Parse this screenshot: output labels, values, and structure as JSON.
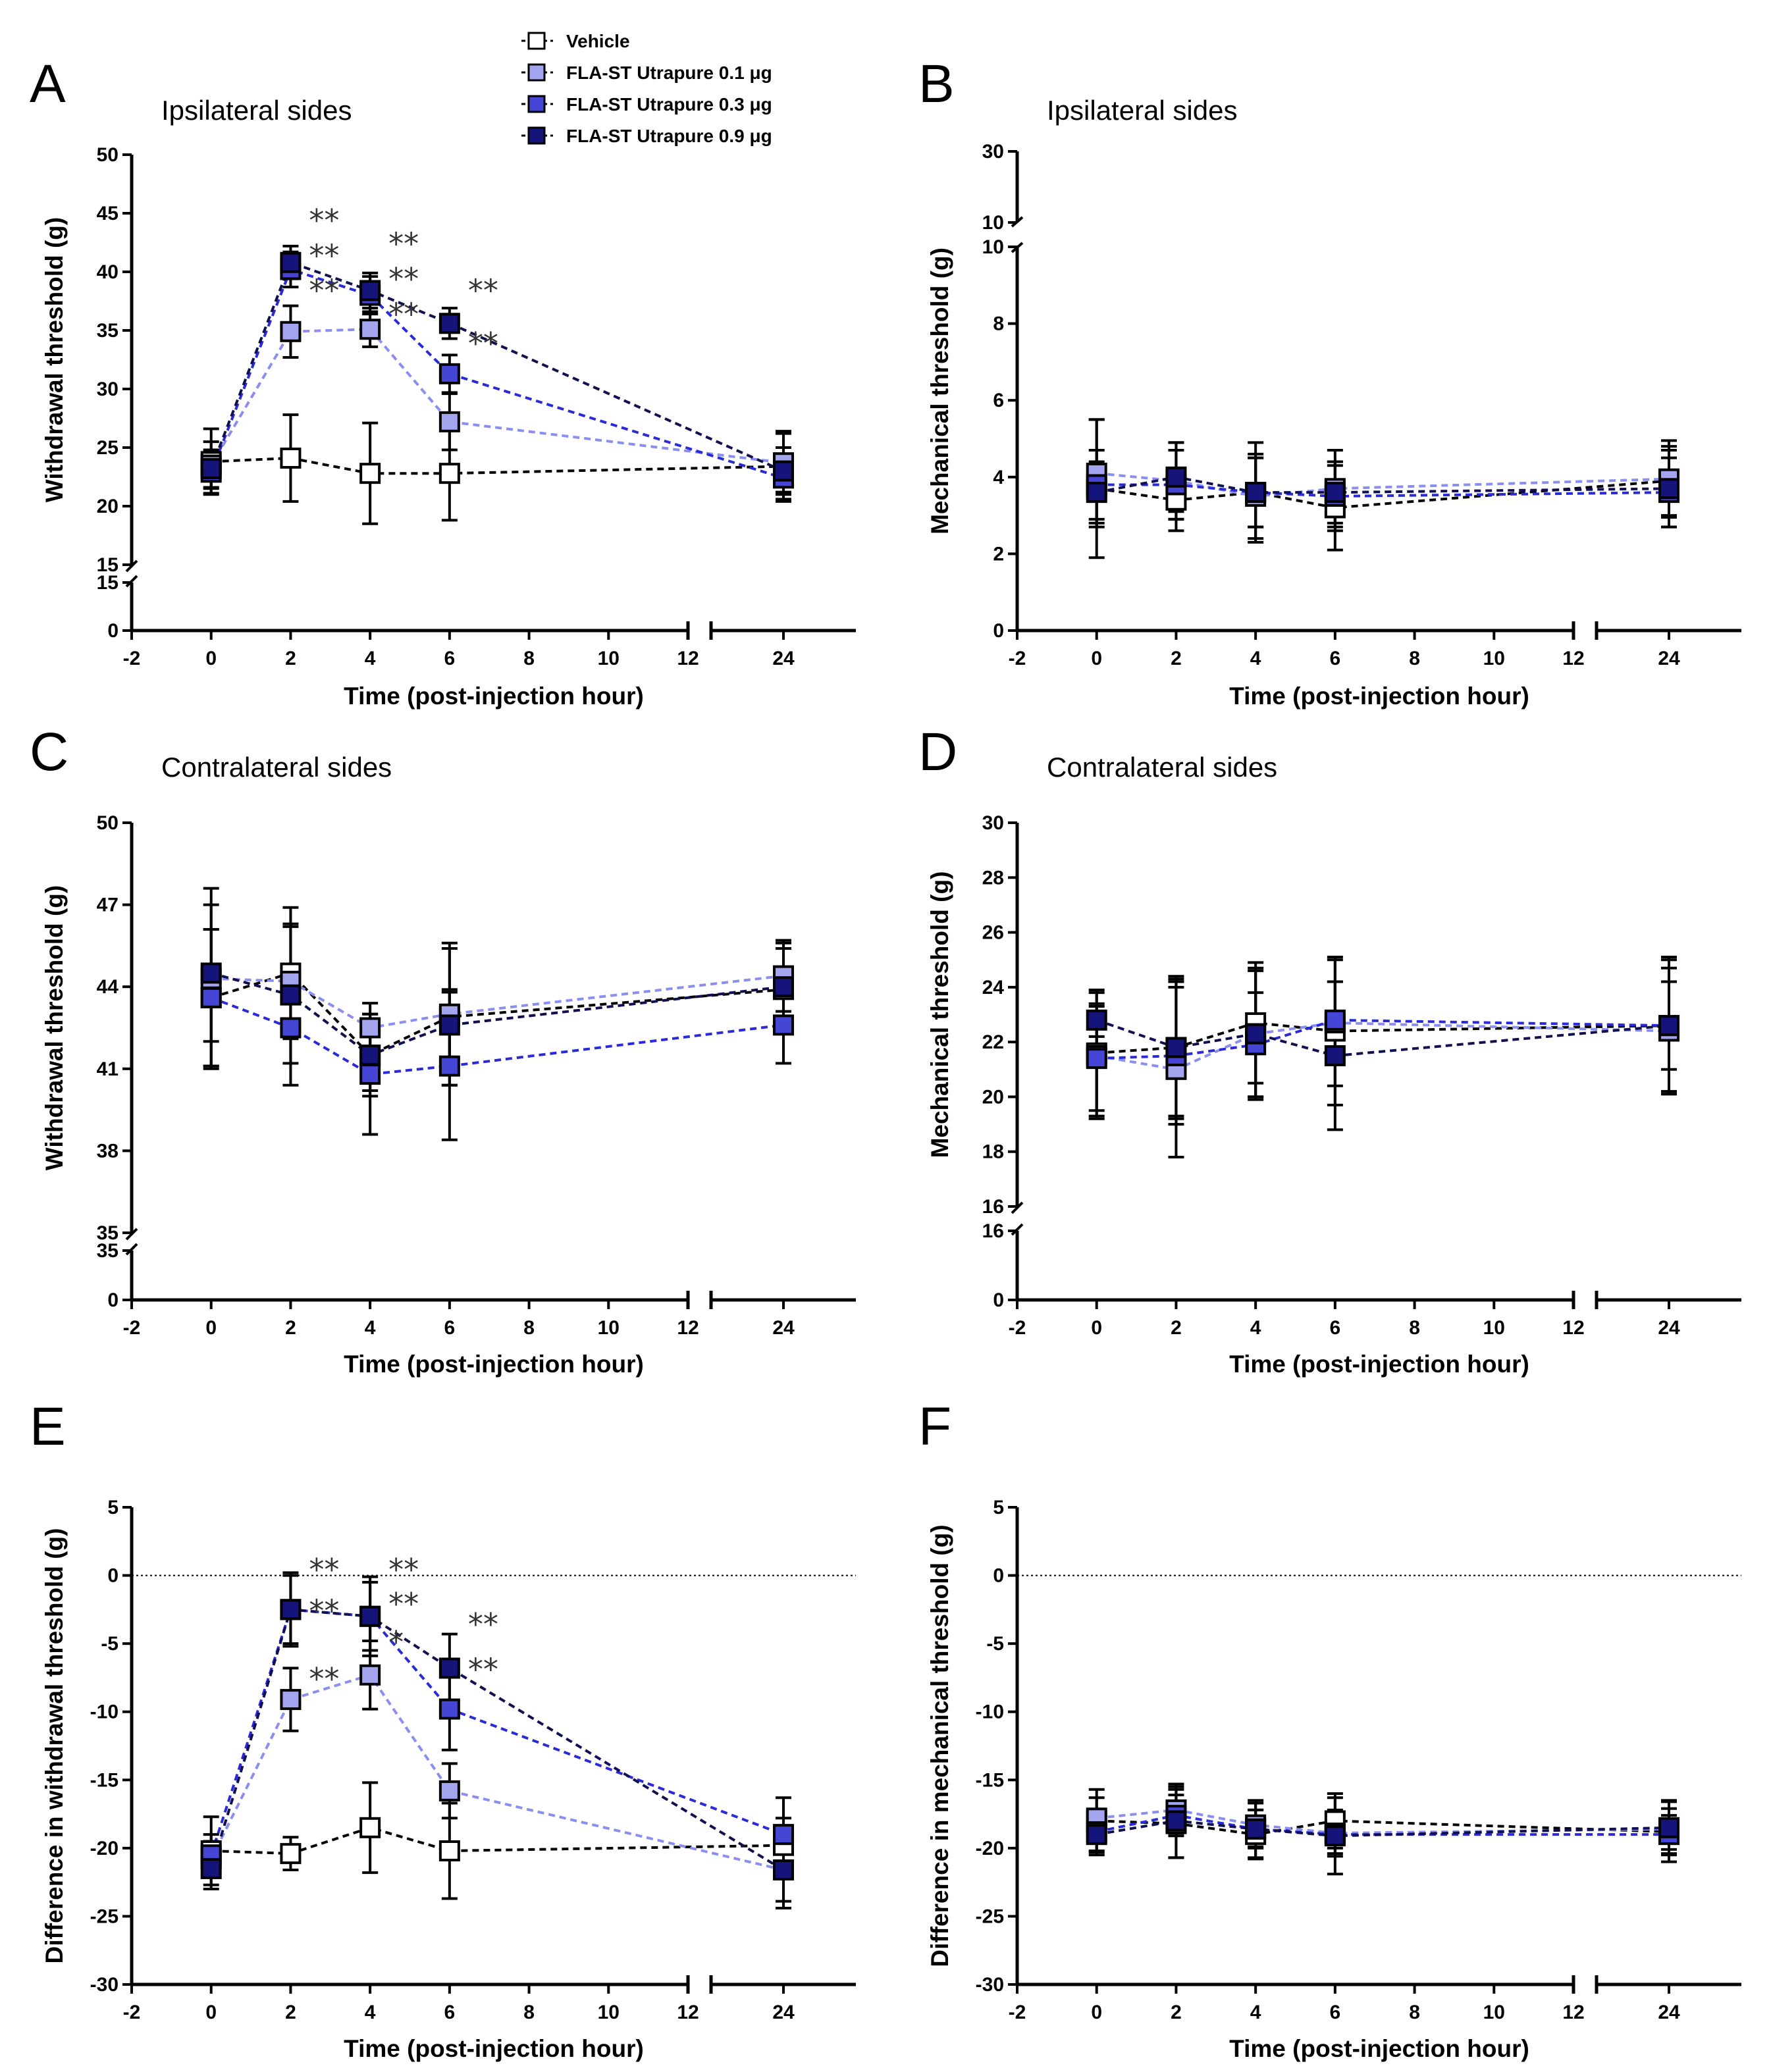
{
  "legend": {
    "items": [
      {
        "label": "Vehicle",
        "color": "#ffffff"
      },
      {
        "label": "FLA-ST Utrapure 0.1 μg",
        "color": "#a3a5ee"
      },
      {
        "label": "FLA-ST Utrapure 0.3 μg",
        "color": "#4646d6"
      },
      {
        "label": "FLA-ST Utrapure 0.9 μg",
        "color": "#14147a"
      }
    ]
  },
  "colors": {
    "vehicle": "#ffffff",
    "low": "#a3a5ee",
    "mid": "#4646d6",
    "high": "#14147a",
    "line_low": "#8a8ef0",
    "line_mid": "#2a2ad8",
    "line_high": "#101050"
  },
  "chart_data": [
    {
      "panel": "A",
      "type": "line",
      "title": "Ipsilateral sides",
      "xlabel": "Time (post-injection hour)",
      "ylabel": "Withdrawal threshold (g)",
      "x": [
        0,
        2,
        4,
        6,
        24
      ],
      "xticks": [
        "-2",
        "0",
        "2",
        "4",
        "6",
        "8",
        "10",
        "12",
        "24"
      ],
      "upper_yticks": [
        "15",
        "20",
        "25",
        "30",
        "35",
        "40",
        "45",
        "50"
      ],
      "lower_yticks": [
        "0",
        "15"
      ],
      "ylim_upper": [
        15,
        50
      ],
      "reference_zero_line": false,
      "series": [
        {
          "name": "Vehicle",
          "values": [
            23.8,
            24.1,
            22.8,
            22.8,
            23.4
          ],
          "errors": [
            2.8,
            3.7,
            4.3,
            4.0,
            3.0
          ]
        },
        {
          "name": "FLA-ST Utrapure 0.1 μg",
          "values": [
            23.5,
            34.9,
            35.1,
            27.2,
            23.7
          ],
          "errors": [
            2.0,
            2.2,
            1.5,
            2.4,
            2.5
          ]
        },
        {
          "name": "FLA-ST Utrapure 0.3 μg",
          "values": [
            22.9,
            40.2,
            38.0,
            31.3,
            22.4
          ],
          "errors": [
            1.8,
            1.5,
            1.6,
            1.6,
            1.8
          ]
        },
        {
          "name": "FLA-ST Utrapure 0.9 μg",
          "values": [
            23.2,
            40.8,
            38.4,
            35.6,
            23.0
          ],
          "errors": [
            1.6,
            1.4,
            1.5,
            1.3,
            2.0
          ]
        }
      ],
      "annotations": [
        {
          "x": 2,
          "y": 44.5,
          "text": "**"
        },
        {
          "x": 2,
          "y": 41.5,
          "text": "**"
        },
        {
          "x": 2,
          "y": 38.5,
          "text": "**"
        },
        {
          "x": 4,
          "y": 42.5,
          "text": "**"
        },
        {
          "x": 4,
          "y": 39.5,
          "text": "**"
        },
        {
          "x": 4,
          "y": 36.5,
          "text": "**"
        },
        {
          "x": 6,
          "y": 38.5,
          "text": "**"
        },
        {
          "x": 6,
          "y": 34.0,
          "text": "**"
        }
      ]
    },
    {
      "panel": "B",
      "type": "line",
      "title": "Ipsilateral sides",
      "xlabel": "Time (post-injection hour)",
      "ylabel": "Mechanical threshold (g)",
      "x": [
        0,
        2,
        4,
        6,
        24
      ],
      "xticks": [
        "-2",
        "0",
        "2",
        "4",
        "6",
        "8",
        "10",
        "12",
        "24"
      ],
      "upper_yticks": [
        "0",
        "2",
        "4",
        "6",
        "8",
        "10"
      ],
      "lower_yticks": [],
      "top_yticks": [
        "10",
        "30"
      ],
      "ylim_upper": [
        0,
        10
      ],
      "reference_zero_line": false,
      "series": [
        {
          "name": "Vehicle",
          "values": [
            3.7,
            3.4,
            3.6,
            3.2,
            3.9
          ],
          "errors": [
            1.8,
            0.8,
            1.3,
            1.1,
            0.9
          ]
        },
        {
          "name": "FLA-ST Utrapure 0.1 μg",
          "values": [
            4.1,
            3.9,
            3.5,
            3.7,
            3.95
          ],
          "errors": [
            1.4,
            1.0,
            1.1,
            1.0,
            1.0
          ]
        },
        {
          "name": "FLA-ST Utrapure 0.3 μg",
          "values": [
            3.8,
            3.8,
            3.6,
            3.5,
            3.6
          ],
          "errors": [
            0.9,
            0.9,
            0.9,
            0.9,
            0.9
          ]
        },
        {
          "name": "FLA-ST Utrapure 0.9 μg",
          "values": [
            3.6,
            4.0,
            3.6,
            3.6,
            3.7
          ],
          "errors": [
            0.8,
            0.9,
            0.9,
            0.8,
            1.0
          ]
        }
      ],
      "annotations": []
    },
    {
      "panel": "C",
      "type": "line",
      "title": "Contralateral sides",
      "xlabel": "Time (post-injection hour)",
      "ylabel": "Withdrawal threshold (g)",
      "x": [
        0,
        2,
        4,
        6,
        24
      ],
      "xticks": [
        "-2",
        "0",
        "2",
        "4",
        "6",
        "8",
        "10",
        "12",
        "24"
      ],
      "upper_yticks": [
        "35",
        "38",
        "41",
        "44",
        "47",
        "50"
      ],
      "lower_yticks": [
        "0",
        "35"
      ],
      "ylim_upper": [
        35,
        50
      ],
      "reference_zero_line": false,
      "series": [
        {
          "name": "Vehicle",
          "values": [
            43.6,
            44.5,
            41.5,
            42.9,
            43.9
          ],
          "errors": [
            2.5,
            2.4,
            1.5,
            2.5,
            1.5
          ]
        },
        {
          "name": "FLA-ST Utrapure 0.1 μg",
          "values": [
            44.3,
            44.2,
            42.5,
            43.0,
            44.4
          ],
          "errors": [
            3.3,
            2.1,
            0.9,
            2.6,
            1.3
          ]
        },
        {
          "name": "FLA-ST Utrapure 0.3 μg",
          "values": [
            43.6,
            42.5,
            40.8,
            41.1,
            42.6
          ],
          "errors": [
            2.5,
            2.1,
            2.2,
            2.7,
            1.4
          ]
        },
        {
          "name": "FLA-ST Utrapure 0.9 μg",
          "values": [
            44.5,
            43.7,
            41.5,
            42.6,
            44.0
          ],
          "errors": [
            2.5,
            2.5,
            1.3,
            1.3,
            1.6
          ]
        }
      ],
      "annotations": []
    },
    {
      "panel": "D",
      "type": "line",
      "title": "Contralateral sides",
      "xlabel": "Time (post-injection hour)",
      "ylabel": "Mechanical threshold (g)",
      "x": [
        0,
        2,
        4,
        6,
        24
      ],
      "xticks": [
        "-2",
        "0",
        "2",
        "4",
        "6",
        "8",
        "10",
        "12",
        "24"
      ],
      "upper_yticks": [
        "16",
        "18",
        "20",
        "22",
        "24",
        "26",
        "28",
        "30"
      ],
      "lower_yticks": [
        "0",
        "16"
      ],
      "ylim_upper": [
        16,
        30
      ],
      "reference_zero_line": false,
      "series": [
        {
          "name": "Vehicle",
          "values": [
            21.6,
            21.8,
            22.7,
            22.4,
            22.6
          ],
          "errors": [
            2.3,
            2.5,
            2.2,
            2.7,
            2.5
          ]
        },
        {
          "name": "FLA-ST Utrapure 0.1 μg",
          "values": [
            21.5,
            21.0,
            22.3,
            22.7,
            22.4
          ],
          "errors": [
            2.3,
            3.2,
            2.3,
            2.3,
            2.3
          ]
        },
        {
          "name": "FLA-ST Utrapure 0.3 μg",
          "values": [
            21.4,
            21.5,
            21.9,
            22.8,
            22.6
          ],
          "errors": [
            1.9,
            2.5,
            1.9,
            1.4,
            1.6
          ]
        },
        {
          "name": "FLA-ST Utrapure 0.9 μg",
          "values": [
            22.8,
            21.8,
            22.3,
            21.5,
            22.6
          ],
          "errors": [
            0.6,
            2.6,
            2.4,
            2.7,
            2.4
          ]
        }
      ],
      "annotations": []
    },
    {
      "panel": "E",
      "type": "line",
      "title": "",
      "xlabel": "Time (post-injection hour)",
      "ylabel": "Difference in withdrawal threshold (g)",
      "x": [
        0,
        2,
        4,
        6,
        24
      ],
      "xticks": [
        "-2",
        "0",
        "2",
        "4",
        "6",
        "8",
        "10",
        "12",
        "24"
      ],
      "upper_yticks": [
        "-30",
        "-25",
        "-20",
        "-15",
        "-10",
        "-5",
        "0",
        "5"
      ],
      "lower_yticks": [],
      "ylim_upper": [
        -30,
        5
      ],
      "reference_zero_line": true,
      "series": [
        {
          "name": "Vehicle",
          "values": [
            -20.2,
            -20.4,
            -18.5,
            -20.2,
            -19.8
          ],
          "errors": [
            2.5,
            1.2,
            3.3,
            3.5,
            2.0
          ]
        },
        {
          "name": "FLA-ST Utrapure 0.1 μg",
          "values": [
            -20.8,
            -9.1,
            -7.3,
            -15.8,
            -21.6
          ],
          "errors": [
            1.3,
            2.3,
            2.5,
            2.0,
            2.8
          ]
        },
        {
          "name": "FLA-ST Utrapure 0.3 μg",
          "values": [
            -20.5,
            -2.5,
            -3.0,
            -9.8,
            -19.0
          ],
          "errors": [
            1.5,
            2.7,
            2.9,
            3.0,
            2.7
          ]
        },
        {
          "name": "FLA-ST Utrapure 0.9 μg",
          "values": [
            -21.5,
            -2.5,
            -3.0,
            -6.8,
            -21.6
          ],
          "errors": [
            1.5,
            2.5,
            2.5,
            2.5,
            2.3
          ]
        }
      ],
      "annotations": [
        {
          "x": 2,
          "y": 0.5,
          "text": "**"
        },
        {
          "x": 2,
          "y": -2.5,
          "text": "**"
        },
        {
          "x": 2,
          "y": -7.5,
          "text": "**"
        },
        {
          "x": 4,
          "y": 0.5,
          "text": "**"
        },
        {
          "x": 4,
          "y": -2.0,
          "text": "**"
        },
        {
          "x": 4,
          "y": -4.8,
          "text": "*"
        },
        {
          "x": 6,
          "y": -3.5,
          "text": "**"
        },
        {
          "x": 6,
          "y": -6.8,
          "text": "**"
        }
      ]
    },
    {
      "panel": "F",
      "type": "line",
      "title": "",
      "xlabel": "Time (post-injection hour)",
      "ylabel": "Difference in mechanical threshold (g)",
      "x": [
        0,
        2,
        4,
        6,
        24
      ],
      "xticks": [
        "-2",
        "0",
        "2",
        "4",
        "6",
        "8",
        "10",
        "12",
        "24"
      ],
      "upper_yticks": [
        "-30",
        "-25",
        "-20",
        "-15",
        "-10",
        "-5",
        "0",
        "5"
      ],
      "lower_yticks": [],
      "ylim_upper": [
        -30,
        5
      ],
      "reference_zero_line": true,
      "series": [
        {
          "name": "Vehicle",
          "values": [
            -18.0,
            -18.2,
            -19.0,
            -18.0,
            -18.8
          ],
          "errors": [
            2.3,
            2.5,
            1.8,
            2.0,
            2.2
          ]
        },
        {
          "name": "FLA-ST Utrapure 0.1 μg",
          "values": [
            -17.8,
            -17.2,
            -18.3,
            -18.9,
            -18.6
          ],
          "errors": [
            1.5,
            1.7,
            1.6,
            1.7,
            1.5
          ]
        },
        {
          "name": "FLA-ST Utrapure 0.3 μg",
          "values": [
            -18.8,
            -17.6,
            -18.6,
            -19.0,
            -19.0
          ],
          "errors": [
            1.4,
            1.5,
            1.4,
            1.4,
            1.4
          ]
        },
        {
          "name": "FLA-ST Utrapure 0.9 μg",
          "values": [
            -19.0,
            -18.0,
            -18.6,
            -19.1,
            -18.5
          ],
          "errors": [
            1.5,
            2.7,
            2.1,
            2.8,
            2.0
          ]
        }
      ],
      "annotations": []
    }
  ]
}
